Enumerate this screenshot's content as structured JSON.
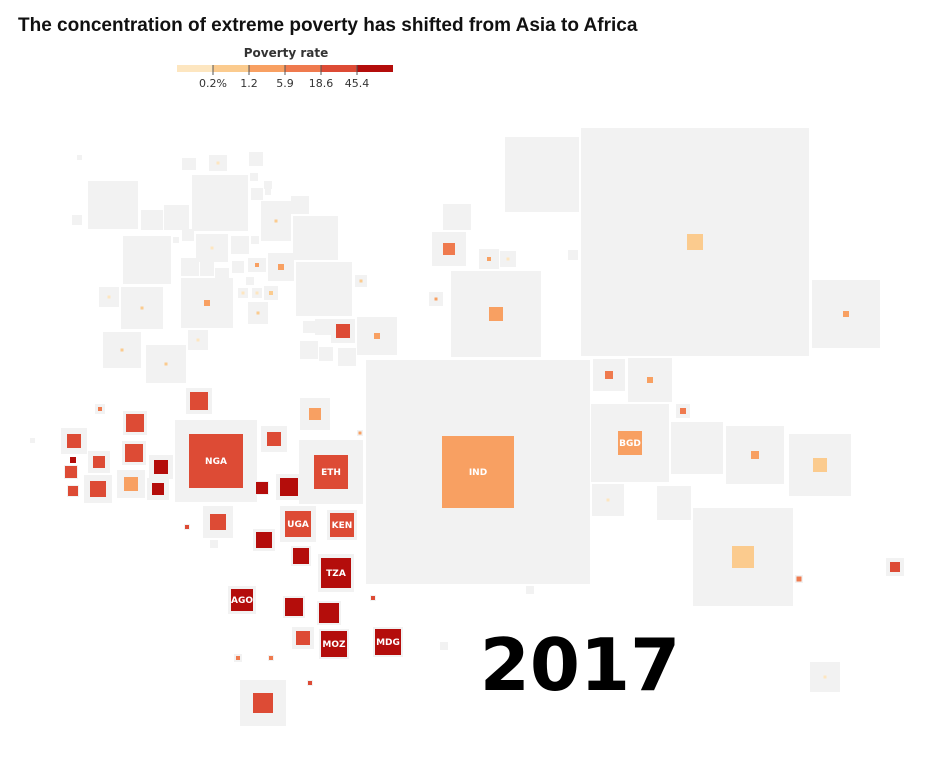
{
  "chart_data": {
    "type": "treemap-cartogram",
    "title": "The concentration of extreme poverty has shifted from Asia to Africa",
    "legend": {
      "title": "Poverty rate",
      "thresholds": [
        "0.2%",
        "1.2",
        "5.9",
        "18.6",
        "45.4"
      ],
      "colors": [
        "#fde6c0",
        "#fbcb8e",
        "#f8a062",
        "#ef7a4e",
        "#dd4b35",
        "#b40d0b"
      ]
    },
    "year": "2017",
    "tile_background": "#f2f2f2",
    "labeled_countries": [
      {
        "code": "IND",
        "poverty_class": 3
      },
      {
        "code": "NGA",
        "poverty_class": 5
      },
      {
        "code": "ETH",
        "poverty_class": 5
      },
      {
        "code": "BGD",
        "poverty_class": 3
      },
      {
        "code": "UGA",
        "poverty_class": 5
      },
      {
        "code": "KEN",
        "poverty_class": 5
      },
      {
        "code": "TZA",
        "poverty_class": 6
      },
      {
        "code": "AGO",
        "poverty_class": 6
      },
      {
        "code": "MOZ",
        "poverty_class": 6
      },
      {
        "code": "MDG",
        "poverty_class": 6
      }
    ]
  }
}
